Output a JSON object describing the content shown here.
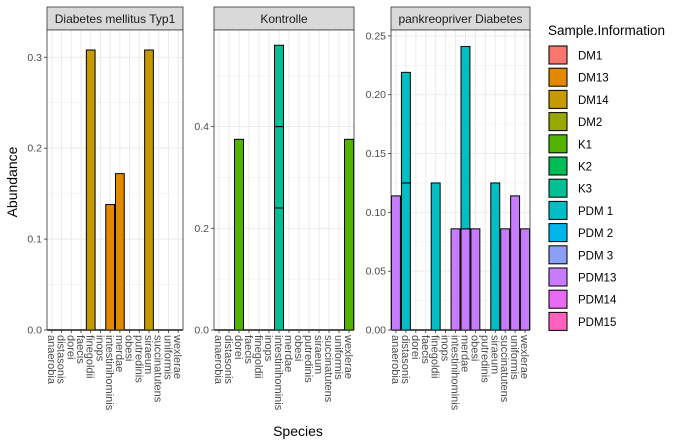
{
  "chart_data": {
    "type": "bar",
    "stacked": true,
    "xlabel": "Species",
    "ylabel": "Abundance",
    "grid": true,
    "legend_position": "right",
    "species": [
      "anaerobia",
      "distasonis",
      "dorei",
      "faecis",
      "finegoldii",
      "inops",
      "intestinihominis",
      "merdae",
      "obesi",
      "putredinis",
      "siraeum",
      "succinatutens",
      "uniformis",
      "wexlerae"
    ],
    "legend": {
      "title": "Sample.Information",
      "entries": [
        {
          "name": "DM1",
          "color": "#F8766D"
        },
        {
          "name": "DM13",
          "color": "#E38900"
        },
        {
          "name": "DM14",
          "color": "#C49A00"
        },
        {
          "name": "DM2",
          "color": "#99A800"
        },
        {
          "name": "K1",
          "color": "#53B400"
        },
        {
          "name": "K2",
          "color": "#00BC56"
        },
        {
          "name": "K3",
          "color": "#00C094"
        },
        {
          "name": "PDM 1",
          "color": "#00BFC4"
        },
        {
          "name": "PDM 2",
          "color": "#00B6EB"
        },
        {
          "name": "PDM 3",
          "color": "#8C9FF7"
        },
        {
          "name": "PDM13",
          "color": "#C77CFF"
        },
        {
          "name": "PDM14",
          "color": "#E76BF3"
        },
        {
          "name": "PDM15",
          "color": "#FF62BC"
        }
      ]
    },
    "panels": [
      {
        "title": "Diabetes mellitus Typ1",
        "ylim": [
          0,
          0.33
        ],
        "yticks": [
          0.0,
          0.1,
          0.2,
          0.3
        ],
        "ytick_labels": [
          "0.0",
          "0.1",
          "0.2",
          "0.3"
        ],
        "bars": [
          {
            "species": "finegoldii",
            "segments": [
              {
                "sample": "DM14",
                "value": 0.308
              }
            ]
          },
          {
            "species": "intestinihominis",
            "segments": [
              {
                "sample": "DM13",
                "value": 0.138
              }
            ]
          },
          {
            "species": "merdae",
            "segments": [
              {
                "sample": "DM13",
                "value": 0.172
              }
            ]
          },
          {
            "species": "siraeum",
            "segments": [
              {
                "sample": "DM14",
                "value": 0.308
              }
            ]
          }
        ]
      },
      {
        "title": "Kontrolle",
        "ylim": [
          0,
          0.59
        ],
        "yticks": [
          0.0,
          0.2,
          0.4
        ],
        "ytick_labels": [
          "0.0",
          "0.2",
          "0.4"
        ],
        "bars": [
          {
            "species": "dorei",
            "segments": [
              {
                "sample": "K1",
                "value": 0.375
              }
            ]
          },
          {
            "species": "intestinihominis",
            "segments": [
              {
                "sample": "K3",
                "value": 0.24
              },
              {
                "sample": "K3",
                "value": 0.16
              },
              {
                "sample": "K3",
                "value": 0.16
              }
            ]
          },
          {
            "species": "wexlerae",
            "segments": [
              {
                "sample": "K1",
                "value": 0.375
              }
            ]
          }
        ]
      },
      {
        "title": "pankreopriver Diabetes",
        "ylim": [
          0,
          0.255
        ],
        "yticks": [
          0.0,
          0.05,
          0.1,
          0.15,
          0.2,
          0.25
        ],
        "ytick_labels": [
          "0.00",
          "0.05",
          "0.10",
          "0.15",
          "0.20",
          "0.25"
        ],
        "bars": [
          {
            "species": "anaerobia",
            "segments": [
              {
                "sample": "PDM13",
                "value": 0.114
              }
            ]
          },
          {
            "species": "distasonis",
            "segments": [
              {
                "sample": "PDM 1",
                "value": 0.125
              },
              {
                "sample": "PDM 1",
                "value": 0.094
              }
            ]
          },
          {
            "species": "finegoldii",
            "segments": [
              {
                "sample": "PDM 1",
                "value": 0.125
              }
            ]
          },
          {
            "species": "intestinihominis",
            "segments": [
              {
                "sample": "PDM13",
                "value": 0.086
              }
            ]
          },
          {
            "species": "merdae",
            "segments": [
              {
                "sample": "PDM13",
                "value": 0.086
              },
              {
                "sample": "PDM 1",
                "value": 0.155
              }
            ]
          },
          {
            "species": "obesi",
            "segments": [
              {
                "sample": "PDM13",
                "value": 0.086
              }
            ]
          },
          {
            "species": "siraeum",
            "segments": [
              {
                "sample": "PDM 1",
                "value": 0.125
              }
            ]
          },
          {
            "species": "succinatutens",
            "segments": [
              {
                "sample": "PDM13",
                "value": 0.086
              }
            ]
          },
          {
            "species": "uniformis",
            "segments": [
              {
                "sample": "PDM13",
                "value": 0.114
              }
            ]
          },
          {
            "species": "wexlerae",
            "segments": [
              {
                "sample": "PDM13",
                "value": 0.086
              }
            ]
          }
        ]
      }
    ]
  }
}
